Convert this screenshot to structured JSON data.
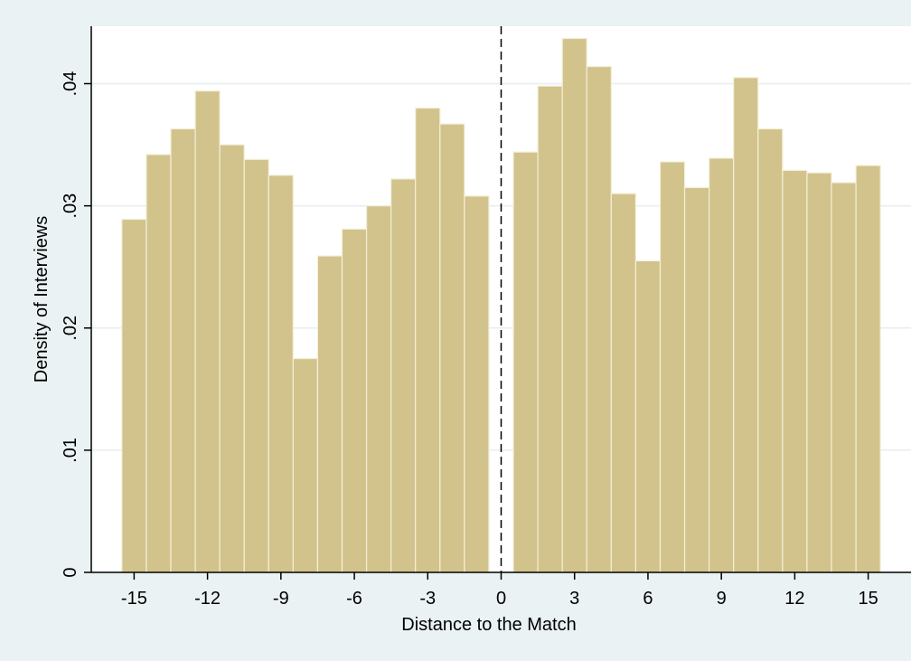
{
  "chart_data": {
    "type": "bar",
    "title": "",
    "xlabel": "Distance to the Match",
    "ylabel": "Density of Interviews",
    "x": [
      -15,
      -14,
      -13,
      -12,
      -11,
      -10,
      -9,
      -8,
      -7,
      -6,
      -5,
      -4,
      -3,
      -2,
      -1,
      1,
      2,
      3,
      4,
      5,
      6,
      7,
      8,
      9,
      10,
      11,
      12,
      13,
      14,
      15
    ],
    "values": [
      0.0289,
      0.0342,
      0.0363,
      0.0394,
      0.035,
      0.0338,
      0.0325,
      0.0175,
      0.0259,
      0.0281,
      0.03,
      0.0322,
      0.038,
      0.0367,
      0.0308,
      0.0344,
      0.0398,
      0.0437,
      0.0414,
      0.031,
      0.0255,
      0.0336,
      0.0315,
      0.0339,
      0.0405,
      0.0363,
      0.0329,
      0.0327,
      0.0319,
      0.0333
    ],
    "xlim": [
      -16.75,
      16.75
    ],
    "ylim": [
      0,
      0.0447
    ],
    "xticks": [
      -15,
      -12,
      -9,
      -6,
      -3,
      0,
      3,
      6,
      9,
      12,
      15
    ],
    "xtick_labels": [
      "-15",
      "-12",
      "-9",
      "-6",
      "-3",
      "0",
      "3",
      "6",
      "9",
      "12",
      "15"
    ],
    "yticks": [
      0,
      0.01,
      0.02,
      0.03,
      0.04
    ],
    "ytick_labels": [
      "0",
      ".01",
      ".02",
      ".03",
      ".04"
    ],
    "reference_line": {
      "x": 0,
      "style": "dashed"
    },
    "grid": "horizontal",
    "colors": {
      "bar_fill": "#d1c38b",
      "bar_edge": "#f4efd9",
      "plot_bg": "#ffffff",
      "outer_bg": "#eaf2f3",
      "grid": "#e6eeee"
    }
  }
}
